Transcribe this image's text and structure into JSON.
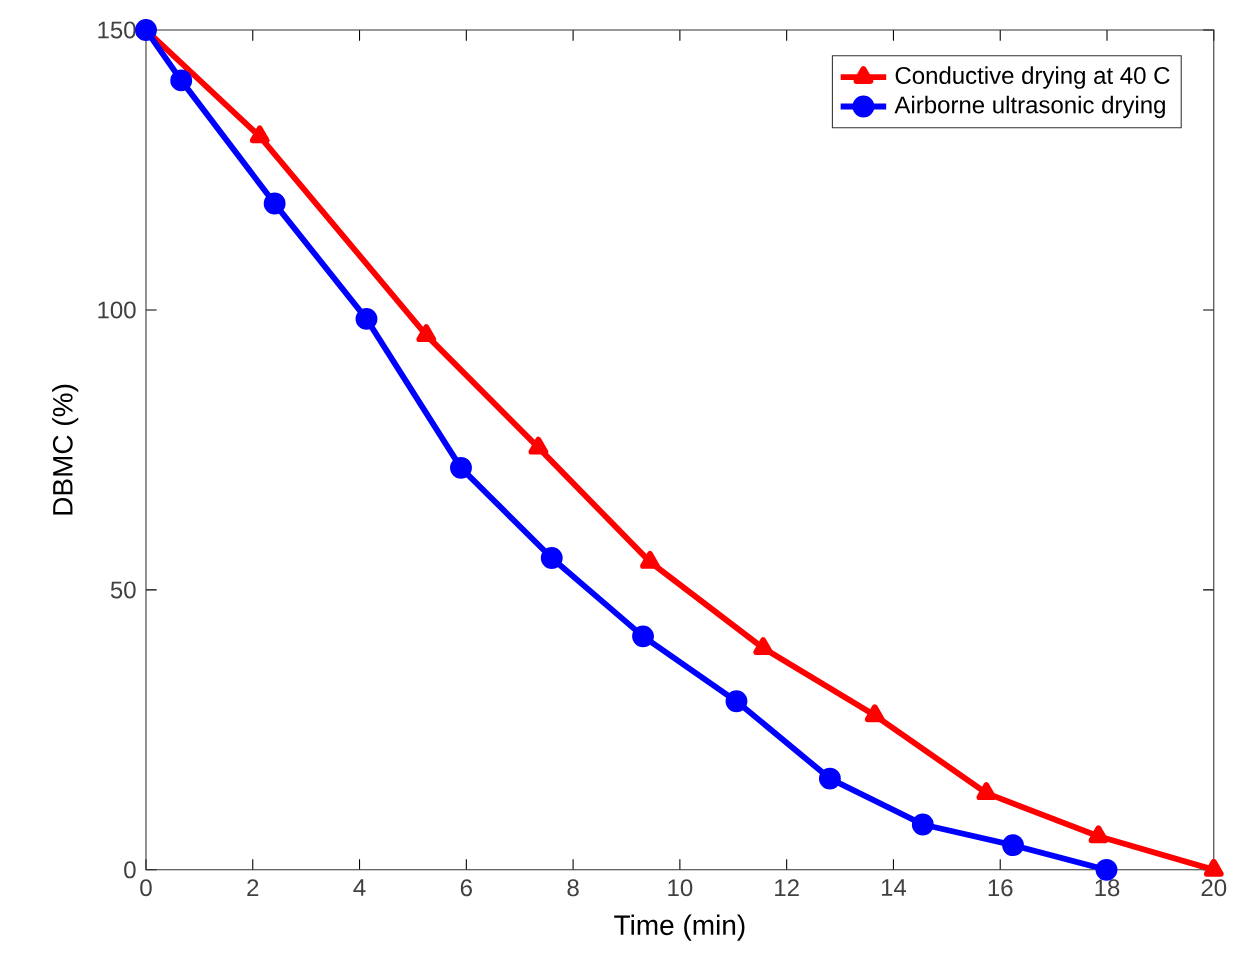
{
  "chart_data": {
    "type": "line",
    "xlabel": "Time (min)",
    "ylabel": "DBMC (%)",
    "xlim": [
      0,
      20
    ],
    "ylim": [
      0,
      150
    ],
    "xticks": [
      0,
      2,
      4,
      6,
      8,
      10,
      12,
      14,
      16,
      18,
      20
    ],
    "yticks": [
      0,
      50,
      100,
      150
    ],
    "legend": "top right",
    "grid": false,
    "line_style": "solid",
    "series": [
      {
        "name": "Conductive drying at 40 C",
        "color": "#ff0000",
        "marker": "triangle",
        "x": [
          0,
          2.13,
          5.25,
          7.35,
          9.44,
          11.56,
          13.65,
          15.74,
          17.84,
          20
        ],
        "values": [
          150,
          131,
          95.5,
          75.4,
          55,
          39.6,
          27.6,
          13.7,
          6,
          0
        ]
      },
      {
        "name": "Airborne ultrasonic drying",
        "color": "#0000ff",
        "marker": "circle",
        "x": [
          0,
          0.66,
          2.41,
          4.13,
          5.9,
          7.6,
          9.31,
          11.06,
          12.81,
          14.55,
          16.24,
          17.99
        ],
        "values": [
          150,
          141,
          119,
          98.4,
          71.8,
          55.7,
          41.7,
          30.1,
          16.3,
          8.1,
          4.4,
          0
        ]
      }
    ]
  }
}
